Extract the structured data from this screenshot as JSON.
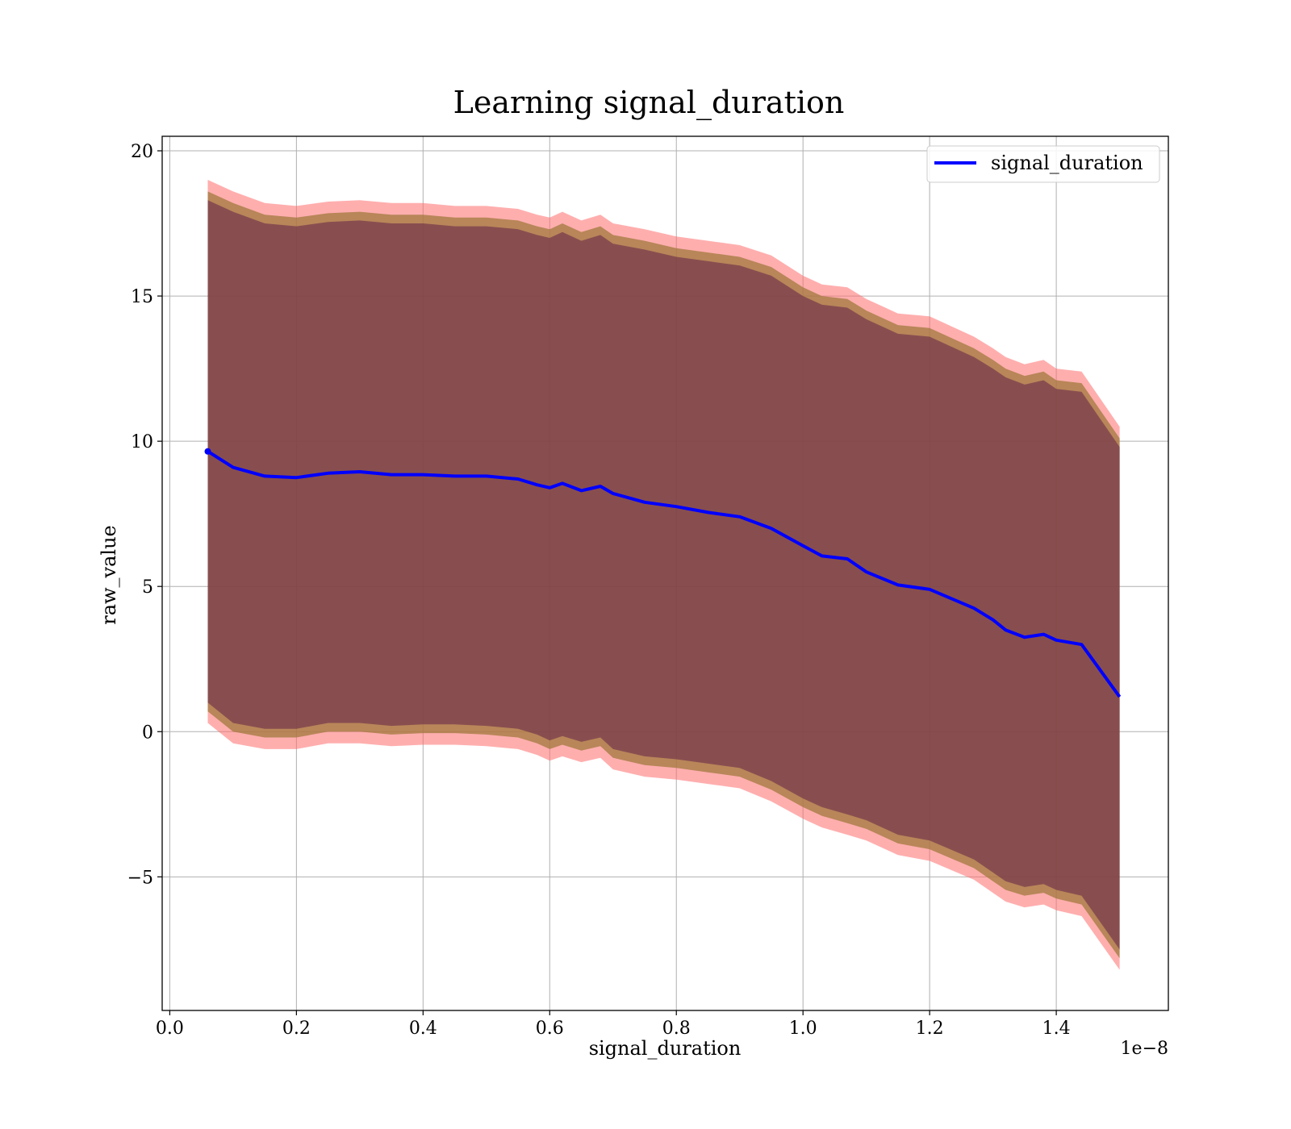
{
  "chart_data": {
    "type": "area",
    "title": "Learning signal_duration",
    "xlabel": "signal_duration",
    "ylabel": "raw_value",
    "x_offset_text": "1e−8",
    "x_unit_scale": 1e-08,
    "xlim": [
      -0.012,
      1.577
    ],
    "ylim": [
      -9.6,
      20.5
    ],
    "x_ticks": [
      {
        "value": 0.0,
        "label": "0.0"
      },
      {
        "value": 0.2,
        "label": "0.2"
      },
      {
        "value": 0.4,
        "label": "0.4"
      },
      {
        "value": 0.6,
        "label": "0.6"
      },
      {
        "value": 0.8,
        "label": "0.8"
      },
      {
        "value": 1.0,
        "label": "1.0"
      },
      {
        "value": 1.2,
        "label": "1.2"
      },
      {
        "value": 1.4,
        "label": "1.4"
      }
    ],
    "y_ticks": [
      {
        "value": -5,
        "label": "−5"
      },
      {
        "value": 0,
        "label": "0"
      },
      {
        "value": 5,
        "label": "5"
      },
      {
        "value": 10,
        "label": "10"
      },
      {
        "value": 15,
        "label": "15"
      },
      {
        "value": 20,
        "label": "20"
      }
    ],
    "grid": true,
    "legend": {
      "position": "top-right",
      "entries": [
        "signal_duration"
      ]
    },
    "colors": {
      "line": "#0000ff",
      "band_outer": "#ff6b6b",
      "band_middle": "#a0783c",
      "band_inner": "#6a2c48",
      "grid": "#b0b0b0"
    },
    "x": [
      0.06,
      0.1,
      0.15,
      0.2,
      0.25,
      0.3,
      0.35,
      0.4,
      0.45,
      0.5,
      0.55,
      0.58,
      0.6,
      0.62,
      0.65,
      0.68,
      0.7,
      0.75,
      0.8,
      0.85,
      0.9,
      0.95,
      1.0,
      1.03,
      1.07,
      1.1,
      1.15,
      1.2,
      1.27,
      1.3,
      1.32,
      1.35,
      1.38,
      1.4,
      1.44,
      1.5
    ],
    "series": [
      {
        "name": "signal_duration",
        "role": "mean",
        "values": [
          9.65,
          9.1,
          8.8,
          8.75,
          8.9,
          8.95,
          8.85,
          8.85,
          8.8,
          8.8,
          8.7,
          8.5,
          8.4,
          8.55,
          8.3,
          8.45,
          8.2,
          7.9,
          7.75,
          7.55,
          7.4,
          7.0,
          6.4,
          6.05,
          5.95,
          5.5,
          5.05,
          4.9,
          4.25,
          3.85,
          3.5,
          3.25,
          3.35,
          3.15,
          3.0,
          1.2
        ]
      },
      {
        "role": "band_outer",
        "lower": [
          0.3,
          -0.4,
          -0.6,
          -0.6,
          -0.4,
          -0.4,
          -0.5,
          -0.45,
          -0.45,
          -0.5,
          -0.6,
          -0.8,
          -1.0,
          -0.85,
          -1.05,
          -0.9,
          -1.3,
          -1.55,
          -1.65,
          -1.8,
          -1.95,
          -2.4,
          -3.0,
          -3.3,
          -3.55,
          -3.75,
          -4.25,
          -4.45,
          -5.1,
          -5.55,
          -5.85,
          -6.05,
          -5.95,
          -6.15,
          -6.35,
          -8.2
        ],
        "upper": [
          19.0,
          18.6,
          18.2,
          18.1,
          18.25,
          18.3,
          18.2,
          18.2,
          18.1,
          18.1,
          18.0,
          17.8,
          17.7,
          17.9,
          17.6,
          17.8,
          17.5,
          17.3,
          17.05,
          16.9,
          16.75,
          16.4,
          15.7,
          15.4,
          15.3,
          14.9,
          14.4,
          14.3,
          13.6,
          13.2,
          12.9,
          12.65,
          12.8,
          12.5,
          12.4,
          10.5
        ]
      },
      {
        "role": "band_middle",
        "lower": [
          0.7,
          0.0,
          -0.2,
          -0.2,
          0.0,
          0.0,
          -0.1,
          -0.05,
          -0.05,
          -0.1,
          -0.2,
          -0.4,
          -0.6,
          -0.45,
          -0.65,
          -0.5,
          -0.9,
          -1.15,
          -1.25,
          -1.4,
          -1.55,
          -2.0,
          -2.6,
          -2.9,
          -3.15,
          -3.35,
          -3.85,
          -4.05,
          -4.7,
          -5.15,
          -5.45,
          -5.65,
          -5.55,
          -5.75,
          -5.95,
          -7.8
        ],
        "upper": [
          18.6,
          18.2,
          17.8,
          17.7,
          17.85,
          17.9,
          17.8,
          17.8,
          17.7,
          17.7,
          17.6,
          17.4,
          17.3,
          17.5,
          17.2,
          17.4,
          17.1,
          16.9,
          16.65,
          16.5,
          16.35,
          16.0,
          15.3,
          15.0,
          14.9,
          14.5,
          14.0,
          13.9,
          13.2,
          12.8,
          12.5,
          12.25,
          12.4,
          12.1,
          12.0,
          10.1
        ]
      },
      {
        "role": "band_inner",
        "lower": [
          1.0,
          0.3,
          0.1,
          0.1,
          0.3,
          0.3,
          0.2,
          0.25,
          0.25,
          0.2,
          0.1,
          -0.1,
          -0.3,
          -0.15,
          -0.35,
          -0.2,
          -0.6,
          -0.85,
          -0.95,
          -1.1,
          -1.25,
          -1.7,
          -2.3,
          -2.6,
          -2.85,
          -3.05,
          -3.55,
          -3.75,
          -4.4,
          -4.85,
          -5.15,
          -5.35,
          -5.25,
          -5.45,
          -5.65,
          -7.5
        ],
        "upper": [
          18.3,
          17.9,
          17.5,
          17.4,
          17.55,
          17.6,
          17.5,
          17.5,
          17.4,
          17.4,
          17.3,
          17.1,
          17.0,
          17.2,
          16.9,
          17.1,
          16.8,
          16.6,
          16.35,
          16.2,
          16.05,
          15.7,
          15.0,
          14.7,
          14.6,
          14.2,
          13.7,
          13.6,
          12.9,
          12.5,
          12.2,
          11.95,
          12.1,
          11.8,
          11.7,
          9.8
        ]
      }
    ]
  }
}
